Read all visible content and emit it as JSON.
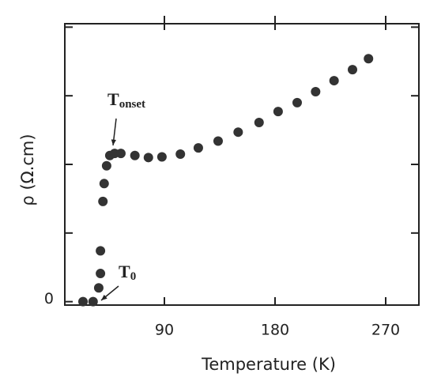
{
  "chart_data": {
    "type": "scatter",
    "x_label": "Temperature (K)",
    "y_label": "ρ (Ω.cm)",
    "xlim": [
      9,
      297
    ],
    "ylim": [
      -0.05,
      4.05
    ],
    "xticks": [
      90,
      180,
      270
    ],
    "yticks": [
      0
    ],
    "yticks_minor": [
      1,
      2,
      3,
      4
    ],
    "color": "#333333",
    "x": [
      23.8,
      32,
      36.6,
      38,
      38,
      40,
      41,
      43,
      45.6,
      49.5,
      54.6,
      66,
      77,
      88,
      103,
      117.6,
      133.7,
      150,
      167,
      182.5,
      198,
      213,
      228,
      243,
      256
    ],
    "values": [
      0,
      0,
      0.2,
      0.41,
      0.74,
      1.46,
      1.72,
      1.98,
      2.13,
      2.16,
      2.16,
      2.13,
      2.1,
      2.11,
      2.15,
      2.24,
      2.34,
      2.47,
      2.61,
      2.77,
      2.9,
      3.06,
      3.22,
      3.38,
      3.54
    ],
    "annotations": [
      {
        "text": "T",
        "sub": "onset"
      },
      {
        "text": "T",
        "sub": "0"
      }
    ]
  }
}
